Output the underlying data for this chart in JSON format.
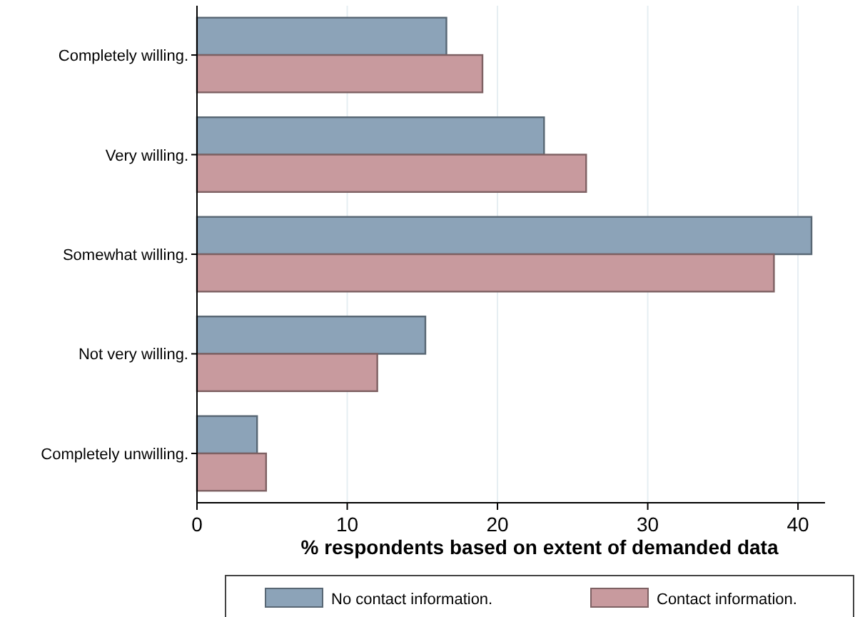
{
  "chart_data": {
    "type": "bar",
    "orientation": "horizontal",
    "xlabel": "% respondents based on extent of demanded data",
    "categories": [
      "Completely willing.",
      "Very willing.",
      "Somewhat willing.",
      "Not very willing.",
      "Completely unwilling."
    ],
    "series": [
      {
        "name": "No contact information.",
        "color": "#8ca3b8",
        "values": [
          16.6,
          23.1,
          40.9,
          15.2,
          4.0
        ]
      },
      {
        "name": "Contact information.",
        "color": "#c89a9e",
        "values": [
          19.0,
          25.9,
          38.4,
          12.0,
          4.6
        ]
      }
    ],
    "xlim": [
      0,
      41.8
    ],
    "xticks": [
      0,
      10,
      20,
      30,
      40
    ],
    "grid": "x",
    "legend": "bottom"
  }
}
